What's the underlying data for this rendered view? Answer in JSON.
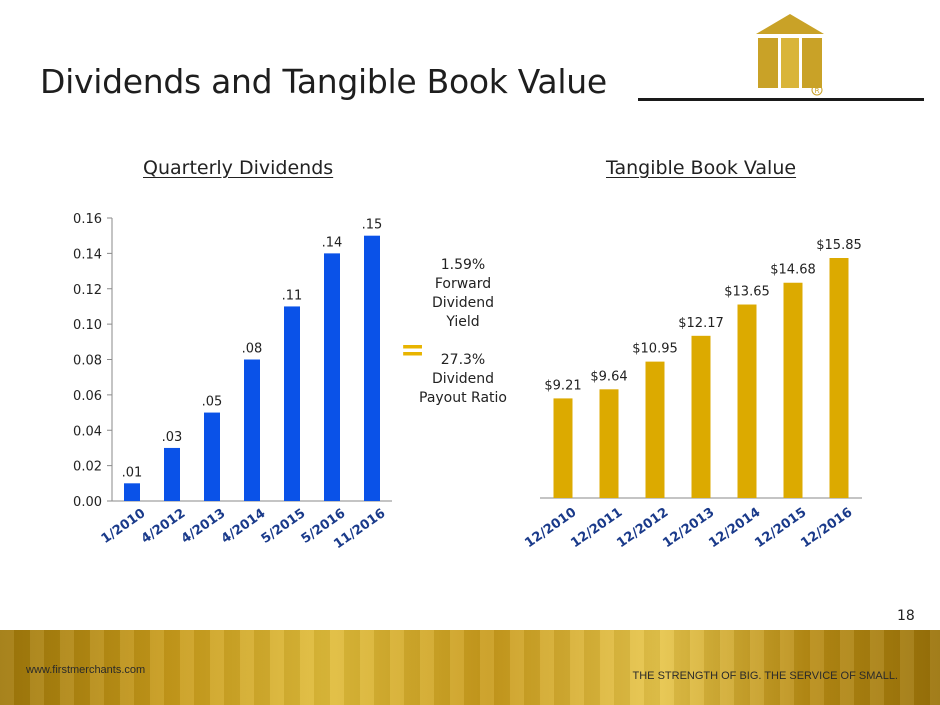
{
  "slide": {
    "title": "Dividends and Tangible Book Value",
    "page_number": "18",
    "footer_url": "www.firstmerchants.com",
    "footer_tagline": "THE STRENGTH OF BIG. THE SERVICE OF SMALL.",
    "equals_sign": "=",
    "colors": {
      "blue": "#0a52e8",
      "gold": "#dcaa00",
      "accent_yellow": "#e8b400"
    }
  },
  "middle_text": {
    "yield_value": "1.59%",
    "yield_line1": "Forward",
    "yield_line2": "Dividend",
    "yield_line3": "Yield",
    "payout_value": "27.3%",
    "payout_line1": "Dividend",
    "payout_line2": "Payout Ratio"
  },
  "chart_data": [
    {
      "type": "bar",
      "title": "Quarterly Dividends",
      "categories": [
        "1/2010",
        "4/2012",
        "4/2013",
        "4/2014",
        "5/2015",
        "5/2016",
        "11/2016"
      ],
      "values": [
        0.01,
        0.03,
        0.05,
        0.08,
        0.11,
        0.14,
        0.15
      ],
      "data_labels": [
        ".01",
        ".03",
        ".05",
        ".08",
        ".11",
        ".14",
        ".15"
      ],
      "ylim": [
        0,
        0.16
      ],
      "yticks": [
        "0.00",
        "0.02",
        "0.04",
        "0.06",
        "0.08",
        "0.10",
        "0.12",
        "0.14",
        "0.16"
      ],
      "color": "#0a52e8",
      "xlabel": "",
      "ylabel": ""
    },
    {
      "type": "bar",
      "title": "Tangible Book Value",
      "categories": [
        "12/2010",
        "12/2011",
        "12/2012",
        "12/2013",
        "12/2014",
        "12/2015",
        "12/2016"
      ],
      "values": [
        9.21,
        9.64,
        10.95,
        12.17,
        13.65,
        14.68,
        15.85
      ],
      "data_labels": [
        "$9.21",
        "$9.64",
        "$10.95",
        "$12.17",
        "$13.65",
        "$14.68",
        "$15.85"
      ],
      "color": "#dcaa00",
      "xlabel": "",
      "ylabel": ""
    }
  ]
}
